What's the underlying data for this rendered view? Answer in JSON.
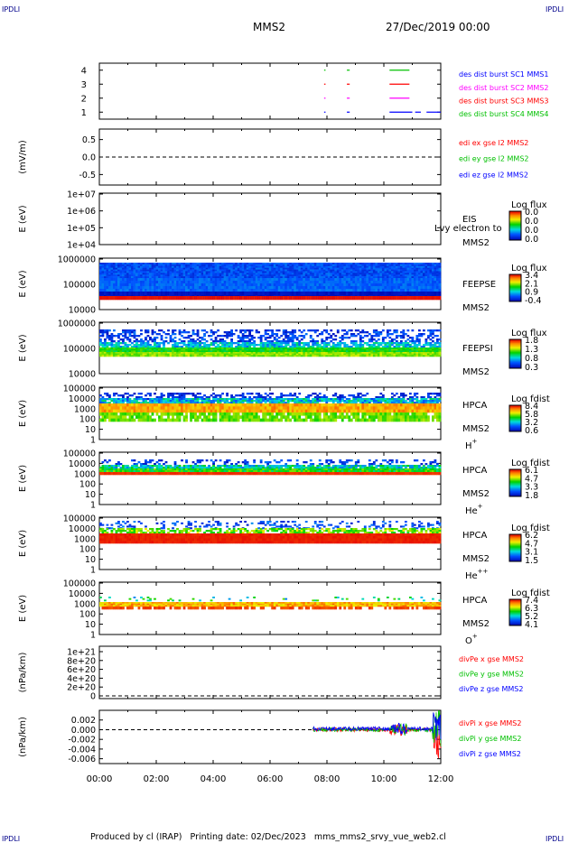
{
  "corner_labels": {
    "top_left": "IPDLI",
    "top_right": "IPDLI",
    "bottom_left": "IPDLI",
    "bottom_right": "IPDLI"
  },
  "header": {
    "spacecraft": "MMS2",
    "date": "27/Dec/2019 00:00"
  },
  "footer": {
    "text": "Produced by cl (IRAP)   Printing date: 02/Dec/2023   mms_mms2_srvy_vue_web2.cl"
  },
  "colors": {
    "corner": "#00008b",
    "red": "#ff0000",
    "green": "#00c000",
    "blue": "#0000ff",
    "magenta": "#ff00ff"
  },
  "chart_data": [
    {
      "type": "line",
      "id": "burst",
      "ylim": [
        0.5,
        4.5
      ],
      "yticks": [
        1,
        2,
        3,
        4
      ],
      "legend": [
        {
          "label": "des dist burst SC1 MMS1",
          "color": "blue"
        },
        {
          "label": "des dist burst SC2 MMS2",
          "color": "magenta"
        },
        {
          "label": "des dist burst SC3 MMS3",
          "color": "red"
        },
        {
          "label": "des dist burst SC4 MMS4",
          "color": "green"
        }
      ],
      "segments": [
        {
          "level": 4,
          "color": "green",
          "ranges": [
            [
              7.9,
              7.95
            ],
            [
              8.7,
              8.8
            ],
            [
              10.2,
              10.9
            ]
          ]
        },
        {
          "level": 3,
          "color": "red",
          "ranges": [
            [
              7.9,
              7.95
            ],
            [
              8.7,
              8.8
            ],
            [
              10.2,
              10.9
            ]
          ]
        },
        {
          "level": 2,
          "color": "magenta",
          "ranges": [
            [
              7.9,
              7.95
            ],
            [
              8.7,
              8.8
            ],
            [
              10.2,
              10.9
            ]
          ]
        },
        {
          "level": 1,
          "color": "blue",
          "ranges": [
            [
              7.9,
              7.95
            ],
            [
              8.7,
              8.8
            ],
            [
              10.2,
              11.0
            ],
            [
              11.1,
              11.3
            ],
            [
              11.5,
              12.0
            ]
          ]
        }
      ]
    },
    {
      "type": "line",
      "id": "edi",
      "ylabel": "(mV/m)",
      "ylim": [
        -0.8,
        0.8
      ],
      "yticks": [
        "0.5",
        "0.0",
        "-0.5"
      ],
      "legend": [
        {
          "label": "edi ex gse l2 MMS2",
          "color": "red"
        },
        {
          "label": "edi ey gse l2 MMS2",
          "color": "green"
        },
        {
          "label": "edi ez gse l2 MMS2",
          "color": "blue"
        }
      ]
    },
    {
      "type": "heatmap",
      "id": "eis",
      "ylabel": "E (eV)",
      "yticks": [
        "1e+07",
        "1e+06",
        "1e+05",
        "1e+04"
      ],
      "labels": [
        "EIS",
        "MMS2"
      ],
      "overlay_text": "Lvy electron to",
      "colorbar": {
        "title": "Log flux",
        "ticks": [
          "0.0",
          "0.0",
          "0.0",
          "0.0"
        ]
      }
    },
    {
      "type": "heatmap",
      "id": "feepse",
      "ylabel": "E (eV)",
      "yticks": [
        "1000000",
        "100000",
        "10000"
      ],
      "labels": [
        "FEEPSE",
        "MMS2"
      ],
      "colorbar": {
        "title": "Log flux",
        "ticks": [
          "3.4",
          "2.1",
          "0.9",
          "-0.4"
        ]
      }
    },
    {
      "type": "heatmap",
      "id": "feepsi",
      "ylabel": "E (eV)",
      "yticks": [
        "1000000",
        "100000",
        "10000"
      ],
      "labels": [
        "FEEPSI",
        "MMS2"
      ],
      "colorbar": {
        "title": "Log flux",
        "ticks": [
          "1.8",
          "1.3",
          "0.8",
          "0.3"
        ]
      }
    },
    {
      "type": "heatmap",
      "id": "hpca_h",
      "ylabel": "E (eV)",
      "yticks": [
        "100000",
        "10000",
        "1000",
        "100",
        "10",
        "1"
      ],
      "labels": [
        "HPCA",
        "MMS2"
      ],
      "species": "H",
      "charge": "+",
      "colorbar": {
        "title": "Log fdist",
        "ticks": [
          "8.4",
          "5.8",
          "3.2",
          "0.6"
        ]
      }
    },
    {
      "type": "heatmap",
      "id": "hpca_he",
      "ylabel": "E (eV)",
      "yticks": [
        "100000",
        "10000",
        "1000",
        "100",
        "10",
        "1"
      ],
      "labels": [
        "HPCA",
        "MMS2"
      ],
      "species": "He",
      "charge": "+",
      "colorbar": {
        "title": "Log fdist",
        "ticks": [
          "6.1",
          "4.7",
          "3.3",
          "1.8"
        ]
      }
    },
    {
      "type": "heatmap",
      "id": "hpca_hepp",
      "ylabel": "E (eV)",
      "yticks": [
        "100000",
        "10000",
        "1000",
        "100",
        "10",
        "1"
      ],
      "labels": [
        "HPCA",
        "MMS2"
      ],
      "species": "He",
      "charge": "++",
      "colorbar": {
        "title": "Log fdist",
        "ticks": [
          "6.2",
          "4.7",
          "3.1",
          "1.5"
        ]
      }
    },
    {
      "type": "heatmap",
      "id": "hpca_o",
      "ylabel": "E (eV)",
      "yticks": [
        "100000",
        "10000",
        "1000",
        "100",
        "10",
        "1"
      ],
      "labels": [
        "HPCA",
        "MMS2"
      ],
      "species": "O",
      "charge": "+",
      "colorbar": {
        "title": "Log fdist",
        "ticks": [
          "7.4",
          "6.3",
          "5.2",
          "4.1"
        ]
      }
    },
    {
      "type": "line",
      "id": "divpe",
      "ylabel": "(nPa/km)",
      "yticks": [
        "1e+21",
        "8e+20",
        "6e+20",
        "4e+20",
        "2e+20",
        "0"
      ],
      "legend": [
        {
          "label": "divPe x gse MMS2",
          "color": "red"
        },
        {
          "label": "divPe y gse MMS2",
          "color": "green"
        },
        {
          "label": "divPe z gse MMS2",
          "color": "blue"
        }
      ]
    },
    {
      "type": "line",
      "id": "divpi",
      "ylabel": "(nPa/km)",
      "ylim": [
        -0.007,
        0.004
      ],
      "yticks": [
        "0.002",
        "0.000",
        "-0.002",
        "-0.004",
        "-0.006"
      ],
      "legend": [
        {
          "label": "divPi x gse MMS2",
          "color": "red"
        },
        {
          "label": "divPi y gse MMS2",
          "color": "green"
        },
        {
          "label": "divPi z gse MMS2",
          "color": "blue"
        }
      ],
      "data_start_hour": 7.5
    },
    {
      "type": "axis",
      "id": "time",
      "xticks": [
        "00:00",
        "02:00",
        "04:00",
        "06:00",
        "08:00",
        "10:00",
        "12:00"
      ],
      "xlim": [
        0,
        12
      ]
    }
  ]
}
